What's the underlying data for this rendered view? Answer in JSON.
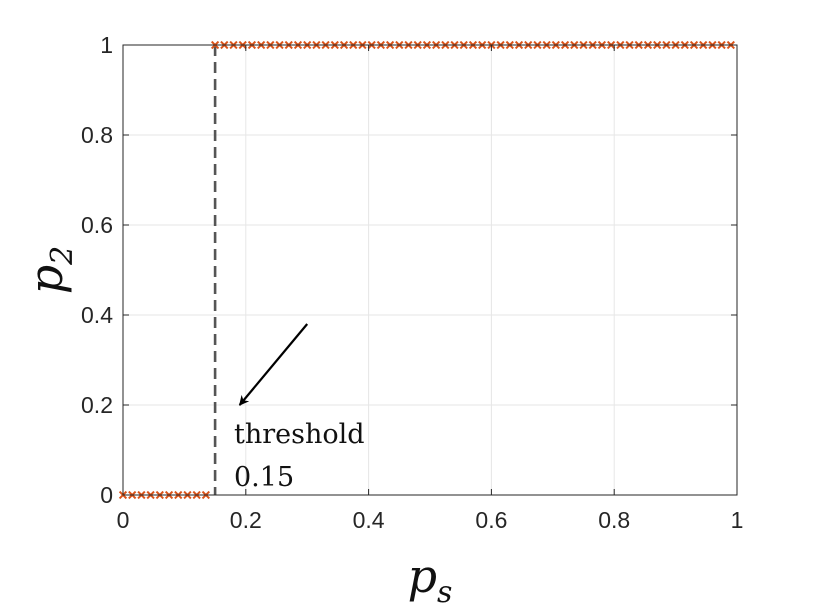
{
  "chart_data": {
    "type": "scatter",
    "title": "",
    "xlabel": {
      "base": "p",
      "sub": "s"
    },
    "ylabel": {
      "base": "p",
      "sub": "2"
    },
    "xlim": [
      0,
      1
    ],
    "ylim": [
      0,
      1
    ],
    "grid": true,
    "xticks": [
      0,
      0.2,
      0.4,
      0.6,
      0.8,
      1
    ],
    "yticks": [
      0,
      0.2,
      0.4,
      0.6,
      0.8,
      1
    ],
    "xtick_labels": [
      "0",
      "0.2",
      "0.4",
      "0.6",
      "0.8",
      "1"
    ],
    "ytick_labels": [
      "0",
      "0.2",
      "0.4",
      "0.6",
      "0.8",
      "1"
    ],
    "series": [
      {
        "marker": "x",
        "color": "#D95319",
        "x": [
          0,
          0.015,
          0.03,
          0.045,
          0.06,
          0.075,
          0.09,
          0.105,
          0.12,
          0.135,
          0.15,
          0.165,
          0.18,
          0.195,
          0.21,
          0.225,
          0.24,
          0.255,
          0.27,
          0.285,
          0.3,
          0.315,
          0.33,
          0.345,
          0.36,
          0.375,
          0.39,
          0.405,
          0.42,
          0.435,
          0.45,
          0.465,
          0.48,
          0.495,
          0.51,
          0.525,
          0.54,
          0.555,
          0.57,
          0.585,
          0.6,
          0.615,
          0.63,
          0.645,
          0.66,
          0.675,
          0.69,
          0.705,
          0.72,
          0.735,
          0.75,
          0.765,
          0.78,
          0.795,
          0.81,
          0.825,
          0.84,
          0.855,
          0.87,
          0.885,
          0.9,
          0.915,
          0.93,
          0.945,
          0.96,
          0.975,
          0.99
        ],
        "y": [
          0,
          0,
          0,
          0,
          0,
          0,
          0,
          0,
          0,
          0,
          1,
          1,
          1,
          1,
          1,
          1,
          1,
          1,
          1,
          1,
          1,
          1,
          1,
          1,
          1,
          1,
          1,
          1,
          1,
          1,
          1,
          1,
          1,
          1,
          1,
          1,
          1,
          1,
          1,
          1,
          1,
          1,
          1,
          1,
          1,
          1,
          1,
          1,
          1,
          1,
          1,
          1,
          1,
          1,
          1,
          1,
          1,
          1,
          1,
          1,
          1,
          1,
          1,
          1,
          1,
          1,
          1
        ]
      }
    ],
    "threshold": {
      "x": 0.15,
      "line_style": "dashed",
      "color": "#555555"
    },
    "annotation": {
      "lines": [
        "threshold",
        "0.15"
      ],
      "arrow_from": [
        0.3,
        0.38
      ],
      "arrow_to": [
        0.19,
        0.2
      ]
    }
  }
}
